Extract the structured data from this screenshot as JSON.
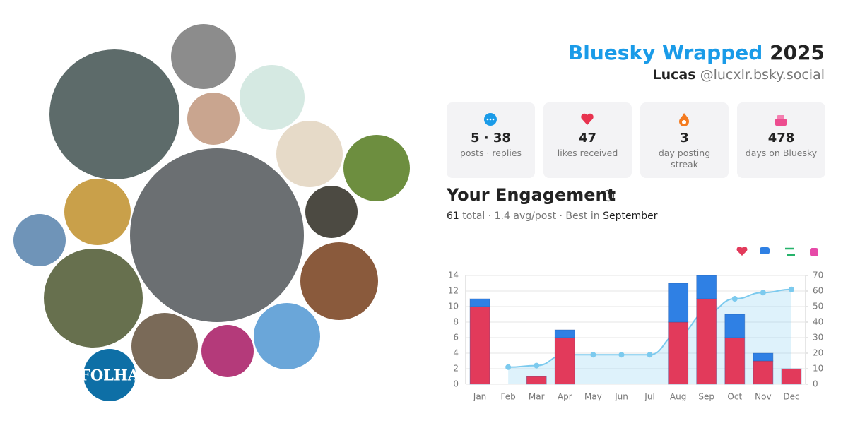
{
  "header": {
    "title_brand": "Bluesky Wrapped",
    "title_year": "2025",
    "user_name": "Lucas",
    "user_handle": "@lucxlr.bsky.social"
  },
  "avatar_text": "FOLHA",
  "stats": [
    {
      "value": "5 · 38",
      "label": "posts · replies"
    },
    {
      "value": "47",
      "label": "likes received"
    },
    {
      "value": "3",
      "label": "day posting streak"
    },
    {
      "value": "478",
      "label": "days on Bluesky"
    }
  ],
  "engagement": {
    "title": "Your Engagement",
    "total": 61,
    "summary": "total · 1.4 avg/post · Best in",
    "best_month": "September"
  },
  "chart_data": {
    "type": "bar",
    "categories": [
      "Jan",
      "Feb",
      "Mar",
      "Apr",
      "May",
      "Jun",
      "Jul",
      "Aug",
      "Sep",
      "Oct",
      "Nov",
      "Dec"
    ],
    "series": [
      {
        "color": "#e23a5b",
        "values": [
          10,
          0,
          1,
          6,
          0,
          0,
          0,
          8,
          11,
          6,
          3,
          2
        ]
      },
      {
        "color": "#2f80e4",
        "values": [
          1,
          0,
          0,
          1,
          0,
          0,
          0,
          5,
          3,
          3,
          1,
          0
        ]
      },
      {
        "color": "#7ccaee",
        "axis": "y2",
        "values": [
          null,
          11,
          12,
          19,
          19,
          19,
          19,
          32,
          46,
          55,
          59,
          61
        ]
      }
    ],
    "ylim": [
      0,
      14
    ],
    "yticks": [
      0,
      2,
      4,
      6,
      8,
      10,
      12,
      14
    ],
    "y2lim": [
      0,
      70
    ],
    "y2ticks": [
      0,
      10,
      20,
      30,
      40,
      50,
      60,
      70
    ],
    "grid": true
  }
}
